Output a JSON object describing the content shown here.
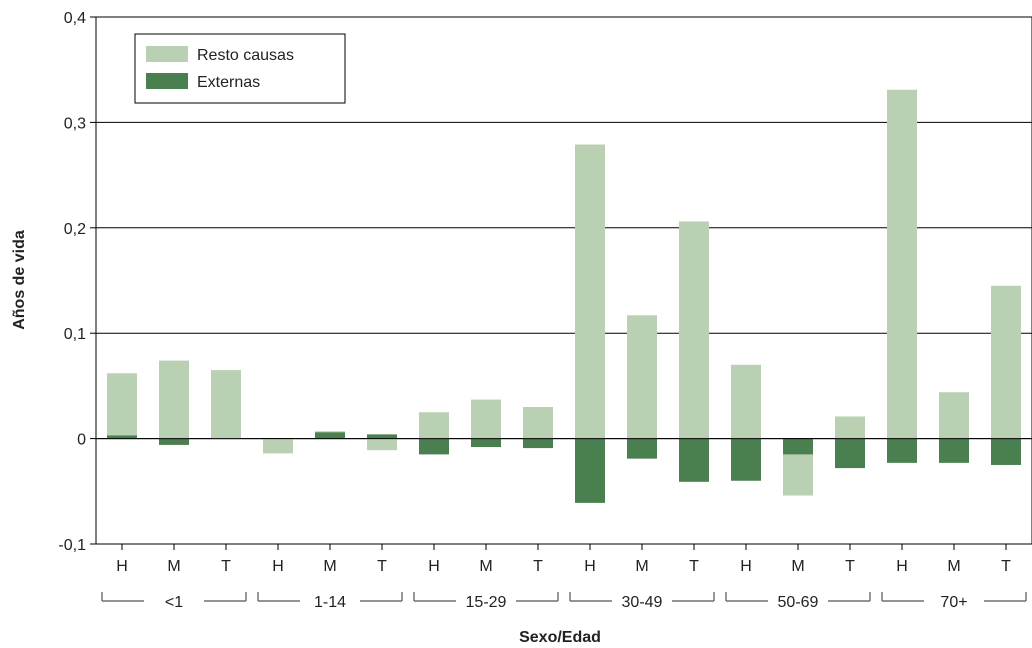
{
  "chart_data": {
    "type": "bar",
    "stacked": true,
    "xlabel": "Sexo/Edad",
    "ylabel": "Años de vida",
    "ylim": [
      -0.1,
      0.4
    ],
    "yticks": [
      -0.1,
      0,
      0.1,
      0.2,
      0.3,
      0.4
    ],
    "ytick_labels": [
      "-0,1",
      "0",
      "0,1",
      "0,2",
      "0,3",
      "0,4"
    ],
    "grid": "horizontal",
    "legend_position": "top-left",
    "groups": [
      {
        "label": "<1",
        "categories": [
          "H",
          "M",
          "T"
        ]
      },
      {
        "label": "1-14",
        "categories": [
          "H",
          "M",
          "T"
        ]
      },
      {
        "label": "15-29",
        "categories": [
          "H",
          "M",
          "T"
        ]
      },
      {
        "label": "30-49",
        "categories": [
          "H",
          "M",
          "T"
        ]
      },
      {
        "label": "50-69",
        "categories": [
          "H",
          "M",
          "T"
        ]
      },
      {
        "label": "70+",
        "categories": [
          "H",
          "M",
          "T"
        ]
      }
    ],
    "series": [
      {
        "name": "Resto causas",
        "color": "#b9d1b2",
        "values": [
          0.059,
          0.074,
          0.065,
          -0.014,
          0.001,
          -0.011,
          0.025,
          0.037,
          0.03,
          0.279,
          0.117,
          0.206,
          0.07,
          -0.039,
          0.021,
          0.331,
          0.044,
          0.145
        ]
      },
      {
        "name": "Externas",
        "color": "#4a7f4f",
        "values": [
          0.003,
          -0.006,
          0.0,
          0.0,
          0.006,
          0.004,
          -0.015,
          -0.008,
          -0.009,
          -0.061,
          -0.019,
          -0.041,
          -0.04,
          -0.015,
          -0.028,
          -0.023,
          -0.023,
          -0.025
        ]
      }
    ]
  }
}
